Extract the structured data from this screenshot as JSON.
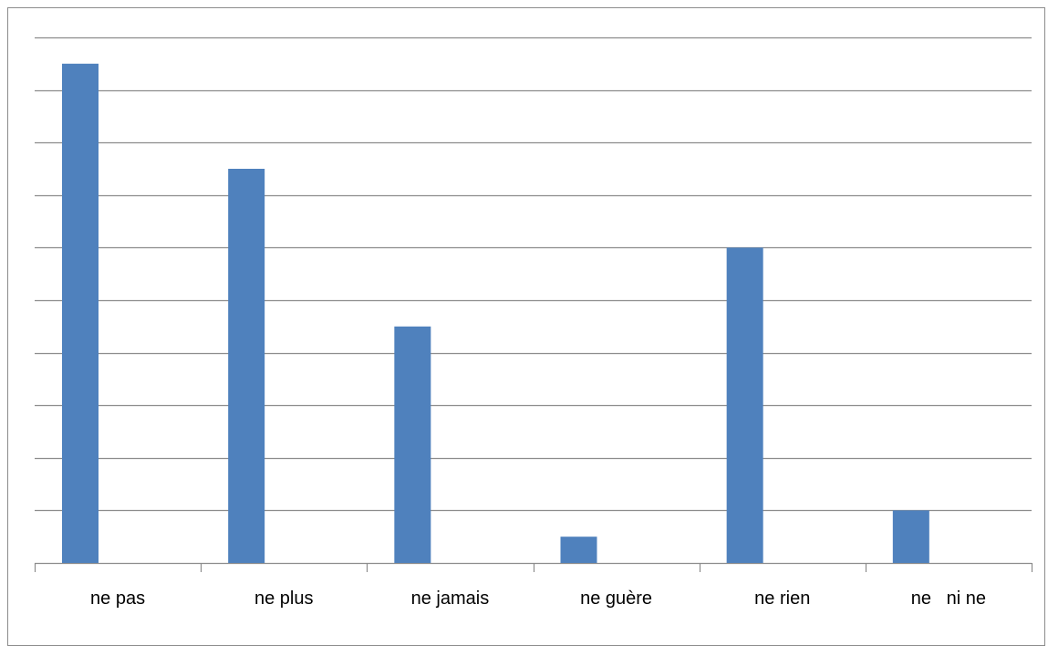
{
  "chart_data": {
    "type": "bar",
    "categories": [
      "ne pas",
      "ne plus",
      "ne jamais",
      "ne guère",
      "ne rien",
      "ne   ni ne"
    ],
    "values": [
      9.5,
      7.5,
      4.5,
      0.5,
      6.0,
      1.0
    ],
    "ylim": [
      0,
      10
    ],
    "grid": true,
    "y_tick_labels_shown": false,
    "legend": "none",
    "title": "",
    "xlabel": "",
    "ylabel": "",
    "colors": {
      "bar": "#4f81bd",
      "gridline": "#8c8c8c",
      "axis": "#8c8c8c",
      "frame": "#8c8c8c"
    }
  }
}
